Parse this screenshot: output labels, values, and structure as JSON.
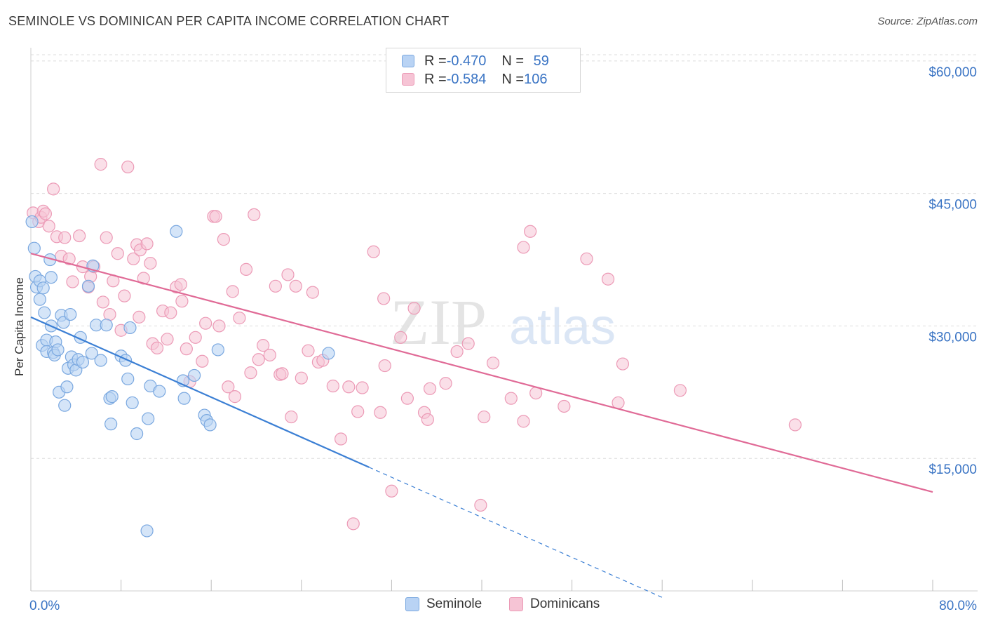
{
  "title": "SEMINOLE VS DOMINICAN PER CAPITA INCOME CORRELATION CHART",
  "source": "Source: ZipAtlas.com",
  "watermark": {
    "zip": "ZIP",
    "atlas": "atlas"
  },
  "colors": {
    "seminole_fill": "#b9d3f4",
    "seminole_stroke": "#7aa8e0",
    "seminole_line": "#3b7fd4",
    "dominican_fill": "#f6c4d5",
    "dominican_stroke": "#ec9ab6",
    "dominican_line": "#e06a96",
    "tick_text": "#3a74c4",
    "grid": "#dcdcdc"
  },
  "legend_top": {
    "rows": [
      {
        "r_label": "R = ",
        "r_value": "-0.470",
        "n_label": "N = ",
        "n_value": " 59"
      },
      {
        "r_label": "R = ",
        "r_value": "-0.584",
        "n_label": "N = ",
        "n_value": "106"
      }
    ]
  },
  "legend_bottom": {
    "seminole": "Seminole",
    "dominicans": "Dominicans"
  },
  "chart_data": {
    "type": "scatter",
    "title": "SEMINOLE VS DOMINICAN PER CAPITA INCOME CORRELATION CHART",
    "xlabel": "",
    "ylabel": "Per Capita Income",
    "xlim": [
      0,
      80
    ],
    "ylim": [
      0,
      61500
    ],
    "x_tick_labels": [
      "0.0%",
      "80.0%"
    ],
    "y_ticks": [
      15000,
      30000,
      45000,
      60000
    ],
    "y_tick_labels": [
      "$15,000",
      "$30,000",
      "$45,000",
      "$60,000"
    ],
    "grid": true,
    "legend_position": "top-center",
    "series": [
      {
        "name": "Seminole",
        "r": -0.47,
        "n": 59,
        "trend": {
          "x0": 0,
          "y0": 31000,
          "x1": 30,
          "y1": 14000,
          "dash_to_x": 56
        },
        "points": [
          [
            0.1,
            41800
          ],
          [
            0.3,
            38800
          ],
          [
            0.4,
            35600
          ],
          [
            0.5,
            34400
          ],
          [
            0.8,
            35100
          ],
          [
            0.8,
            33000
          ],
          [
            1.1,
            34300
          ],
          [
            1.0,
            27800
          ],
          [
            1.2,
            31500
          ],
          [
            1.4,
            28400
          ],
          [
            1.4,
            27100
          ],
          [
            1.7,
            37500
          ],
          [
            1.8,
            35500
          ],
          [
            1.8,
            30000
          ],
          [
            2.0,
            27000
          ],
          [
            2.1,
            26700
          ],
          [
            2.2,
            28200
          ],
          [
            2.4,
            27300
          ],
          [
            2.5,
            22500
          ],
          [
            2.7,
            31200
          ],
          [
            2.9,
            30400
          ],
          [
            3.0,
            21000
          ],
          [
            3.2,
            23100
          ],
          [
            3.3,
            25200
          ],
          [
            3.5,
            31300
          ],
          [
            3.6,
            26500
          ],
          [
            3.8,
            25600
          ],
          [
            4.0,
            25000
          ],
          [
            4.2,
            26200
          ],
          [
            4.4,
            28700
          ],
          [
            4.6,
            25900
          ],
          [
            5.1,
            34500
          ],
          [
            5.4,
            26900
          ],
          [
            5.5,
            36800
          ],
          [
            5.8,
            30100
          ],
          [
            6.2,
            26100
          ],
          [
            6.7,
            30100
          ],
          [
            7.0,
            21800
          ],
          [
            7.1,
            18900
          ],
          [
            7.2,
            22000
          ],
          [
            8.0,
            26600
          ],
          [
            8.4,
            26100
          ],
          [
            8.6,
            24000
          ],
          [
            8.8,
            29800
          ],
          [
            9.0,
            21300
          ],
          [
            9.4,
            17800
          ],
          [
            10.4,
            19500
          ],
          [
            10.6,
            23200
          ],
          [
            11.4,
            22600
          ],
          [
            10.3,
            6800
          ],
          [
            12.9,
            40700
          ],
          [
            13.5,
            23800
          ],
          [
            13.6,
            21800
          ],
          [
            14.5,
            24400
          ],
          [
            15.4,
            19900
          ],
          [
            15.6,
            19300
          ],
          [
            15.9,
            18800
          ],
          [
            16.6,
            27300
          ],
          [
            26.4,
            26900
          ]
        ]
      },
      {
        "name": "Dominicans",
        "r": -0.584,
        "n": 106,
        "trend": {
          "x0": 0,
          "y0": 38200,
          "x1": 80,
          "y1": 11200
        },
        "points": [
          [
            0.2,
            42800
          ],
          [
            0.7,
            41800
          ],
          [
            0.9,
            42300
          ],
          [
            1.1,
            43000
          ],
          [
            1.3,
            42700
          ],
          [
            1.6,
            41300
          ],
          [
            2.0,
            45500
          ],
          [
            2.3,
            40100
          ],
          [
            2.7,
            37900
          ],
          [
            3.0,
            40000
          ],
          [
            3.4,
            37600
          ],
          [
            3.7,
            35000
          ],
          [
            4.3,
            40200
          ],
          [
            4.6,
            36700
          ],
          [
            5.1,
            34400
          ],
          [
            5.3,
            35600
          ],
          [
            5.6,
            36700
          ],
          [
            6.2,
            48300
          ],
          [
            6.4,
            32700
          ],
          [
            6.7,
            40000
          ],
          [
            7.0,
            31300
          ],
          [
            7.3,
            35100
          ],
          [
            7.7,
            38200
          ],
          [
            8.0,
            29500
          ],
          [
            8.3,
            33400
          ],
          [
            8.6,
            48000
          ],
          [
            9.1,
            37600
          ],
          [
            9.4,
            39200
          ],
          [
            9.6,
            31000
          ],
          [
            9.7,
            38600
          ],
          [
            10.0,
            35400
          ],
          [
            10.3,
            39300
          ],
          [
            10.6,
            37100
          ],
          [
            10.8,
            28000
          ],
          [
            11.2,
            27500
          ],
          [
            11.7,
            31700
          ],
          [
            12.1,
            28500
          ],
          [
            12.4,
            31500
          ],
          [
            12.9,
            34400
          ],
          [
            13.3,
            34700
          ],
          [
            13.4,
            32800
          ],
          [
            13.8,
            27400
          ],
          [
            14.1,
            23700
          ],
          [
            14.6,
            28700
          ],
          [
            15.2,
            26000
          ],
          [
            15.5,
            30300
          ],
          [
            16.2,
            42400
          ],
          [
            16.4,
            42400
          ],
          [
            16.7,
            30000
          ],
          [
            17.1,
            39800
          ],
          [
            17.5,
            23100
          ],
          [
            17.9,
            33900
          ],
          [
            18.1,
            22000
          ],
          [
            18.5,
            30900
          ],
          [
            19.1,
            36400
          ],
          [
            19.5,
            24700
          ],
          [
            19.8,
            42600
          ],
          [
            20.2,
            26200
          ],
          [
            20.6,
            27800
          ],
          [
            21.2,
            26700
          ],
          [
            21.7,
            34500
          ],
          [
            22.1,
            24500
          ],
          [
            22.3,
            24600
          ],
          [
            22.8,
            35800
          ],
          [
            23.1,
            19700
          ],
          [
            23.5,
            34500
          ],
          [
            24.0,
            24100
          ],
          [
            24.6,
            27200
          ],
          [
            25.0,
            33800
          ],
          [
            25.5,
            25900
          ],
          [
            25.9,
            26100
          ],
          [
            26.8,
            23200
          ],
          [
            27.5,
            17200
          ],
          [
            28.2,
            23100
          ],
          [
            28.6,
            7600
          ],
          [
            29.0,
            20300
          ],
          [
            29.4,
            23000
          ],
          [
            30.4,
            38400
          ],
          [
            31.0,
            20200
          ],
          [
            31.3,
            33100
          ],
          [
            31.4,
            25500
          ],
          [
            32.0,
            11300
          ],
          [
            32.8,
            28700
          ],
          [
            33.4,
            21800
          ],
          [
            34.0,
            32000
          ],
          [
            34.9,
            20200
          ],
          [
            35.2,
            19400
          ],
          [
            35.4,
            22900
          ],
          [
            36.8,
            23500
          ],
          [
            37.8,
            27100
          ],
          [
            38.8,
            28000
          ],
          [
            39.9,
            9700
          ],
          [
            40.2,
            19700
          ],
          [
            41.0,
            25800
          ],
          [
            42.6,
            21800
          ],
          [
            43.7,
            19200
          ],
          [
            43.7,
            38900
          ],
          [
            44.3,
            40700
          ],
          [
            44.8,
            22400
          ],
          [
            47.3,
            20900
          ],
          [
            49.3,
            37600
          ],
          [
            51.2,
            35300
          ],
          [
            52.1,
            21300
          ],
          [
            52.5,
            25700
          ],
          [
            57.6,
            22700
          ],
          [
            67.8,
            18800
          ]
        ]
      }
    ]
  }
}
